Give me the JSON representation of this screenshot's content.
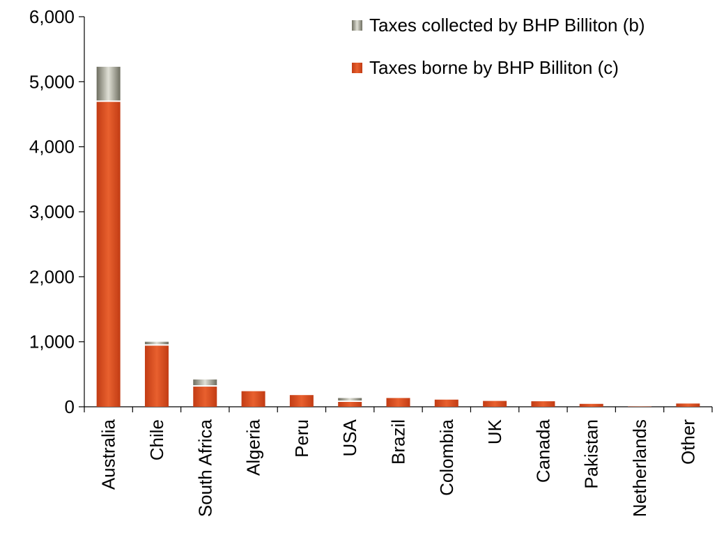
{
  "chart_data": {
    "type": "bar",
    "stacked": true,
    "title": "",
    "xlabel": "",
    "ylabel": "",
    "ylim": [
      0,
      6000
    ],
    "yticks": [
      0,
      1000,
      2000,
      3000,
      4000,
      5000,
      6000
    ],
    "ytick_labels": [
      "0",
      "1,000",
      "2,000",
      "3,000",
      "4,000",
      "5,000",
      "6,000"
    ],
    "grid": false,
    "legend_position": "top-right",
    "categories": [
      "Australia",
      "Chile",
      "South Africa",
      "Algeria",
      "Peru",
      "USA",
      "Brazil",
      "Colombia",
      "UK",
      "Canada",
      "Pakistan",
      "Netherlands",
      "Other"
    ],
    "series": [
      {
        "name": "Taxes borne by BHP Billiton (c)",
        "color": "#d24a1c",
        "values": [
          4690,
          940,
          310,
          240,
          180,
          75,
          135,
          110,
          90,
          85,
          45,
          5,
          50
        ]
      },
      {
        "name": "Taxes collected by BHP Billiton (b)",
        "color": "#a6a697",
        "values": [
          540,
          60,
          110,
          0,
          0,
          60,
          0,
          0,
          0,
          0,
          0,
          0,
          0
        ]
      }
    ],
    "legend_order": [
      "Taxes collected by BHP Billiton (b)",
      "Taxes borne by BHP Billiton (c)"
    ]
  }
}
